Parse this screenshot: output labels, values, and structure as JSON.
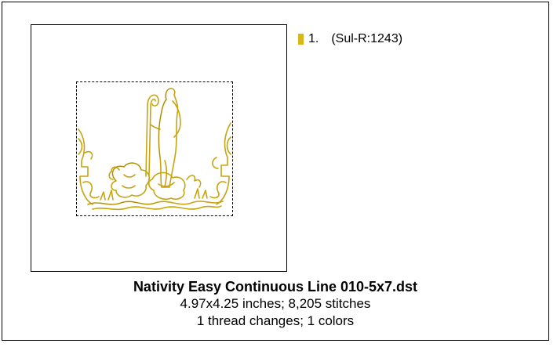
{
  "colors": {
    "thread_1": "#d8b818",
    "stitch_line": "#c8a410",
    "stitch_dark": "#8a6f08"
  },
  "legend": {
    "threads": [
      {
        "number": "1.",
        "name": "(Sul-R:1243)"
      }
    ]
  },
  "design": {
    "title": "Nativity Easy Continuous Line 010-5x7.dst",
    "dimensions_stitches": "4.97x4.25 inches; 8,205 stitches",
    "thread_summary": "1 thread changes; 1 colors"
  }
}
